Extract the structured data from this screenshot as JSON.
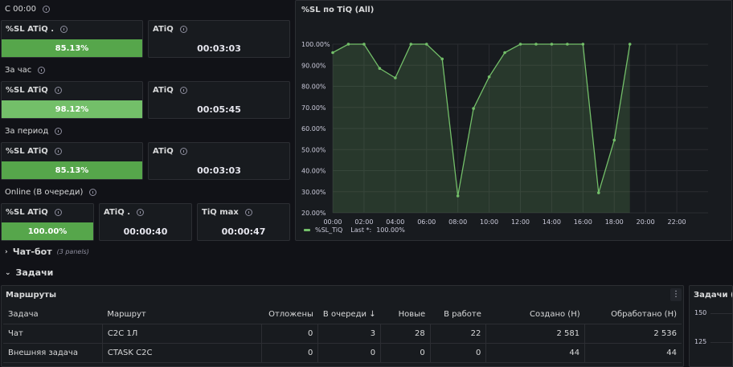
{
  "sections": {
    "today": "С 00:00",
    "hour": "За час",
    "period": "За период",
    "online": "Online (В очереди)"
  },
  "stats": {
    "today": {
      "sl_title": "%SL ATiQ .",
      "sl_value": "85.13%",
      "atiq_title": "ATiQ",
      "atiq_value": "00:03:03"
    },
    "hour": {
      "sl_title": "%SL ATiQ",
      "sl_value": "98.12%",
      "atiq_title": "ATiQ",
      "atiq_value": "00:05:45"
    },
    "period": {
      "sl_title": "%SL ATiQ",
      "sl_value": "85.13%",
      "atiq_title": "ATiQ",
      "atiq_value": "00:03:03"
    },
    "online": {
      "sl_title": "%SL ATiQ",
      "sl_value": "100.00%",
      "atiq_title": "ATiQ .",
      "atiq_value": "00:00:40",
      "tiq_title": "TiQ max",
      "tiq_value": "00:00:47"
    }
  },
  "chart_panel_title": "%SL по TiQ (All)",
  "chart_data": {
    "type": "area",
    "title": "%SL по TiQ (All)",
    "x": [
      "00:00",
      "01:00",
      "02:00",
      "03:00",
      "04:00",
      "05:00",
      "06:00",
      "07:00",
      "08:00",
      "09:00",
      "10:00",
      "11:00",
      "12:00",
      "13:00",
      "14:00",
      "15:00",
      "16:00",
      "17:00",
      "18:00",
      "19:00"
    ],
    "x_ticks": [
      "00:00",
      "02:00",
      "04:00",
      "06:00",
      "08:00",
      "10:00",
      "12:00",
      "14:00",
      "16:00",
      "18:00",
      "20:00",
      "22:00"
    ],
    "x_range_hours": [
      0,
      24
    ],
    "y_ticks": [
      "20.00%",
      "30.00%",
      "40.00%",
      "50.00%",
      "60.00%",
      "70.00%",
      "80.00%",
      "90.00%",
      "100.00%"
    ],
    "ylim": [
      20,
      100
    ],
    "series": [
      {
        "name": "%SL_TiQ",
        "color": "#73bf69",
        "values": [
          96,
          100,
          100,
          88.5,
          84,
          100,
          100,
          93,
          28,
          69.5,
          84.5,
          96,
          100,
          100,
          100,
          100,
          100,
          29.5,
          54.5,
          100
        ]
      }
    ],
    "legend": {
      "label": "%SL_TiQ",
      "last_label": "Last *:",
      "last_value": "100.00%",
      "placement": "bottom-left"
    },
    "grid": true
  },
  "rows": {
    "chatbot": {
      "label": "Чат-бот",
      "hint": "(3 panels)"
    },
    "tasks": {
      "label": "Задачи"
    }
  },
  "routes": {
    "title": "Маршруты",
    "menu_icon": "kebab-menu-icon",
    "columns": [
      "Задача",
      "Маршрут",
      "Отложены",
      "В очереди",
      "Новые",
      "В работе",
      "Создано (Н)",
      "Обработано (Н)"
    ],
    "sort_indicator": "↓",
    "rows": [
      [
        "Чат",
        "C2C 1Л",
        "0",
        "3",
        "28",
        "22",
        "2 581",
        "2 536"
      ],
      [
        "Внешняя задача",
        "CTASK C2C",
        "0",
        "0",
        "0",
        "0",
        "44",
        "44"
      ]
    ]
  },
  "tasks_panel": {
    "title": "Задачи (Al",
    "y_ticks": [
      "150",
      "125"
    ]
  }
}
